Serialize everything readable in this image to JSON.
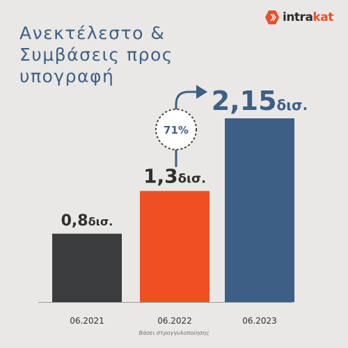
{
  "brand": {
    "logo_text_prefix": "intra",
    "logo_text_suffix": "kat",
    "colors": {
      "dark": "#2b2b2b",
      "accent": "#e8502a"
    }
  },
  "title_lines": [
    "Ανεκτέλεστο &",
    "Συμβάσεις προς",
    "υπογραφή"
  ],
  "footnote": "Βάσει στρογγυλοποίησης",
  "growth_badge": "71%",
  "chart_data": {
    "type": "bar",
    "title": "Ανεκτέλεστο & Συμβάσεις προς υπογραφή",
    "categories": [
      "06.2021",
      "06.2022",
      "06.2023"
    ],
    "values": [
      0.8,
      1.3,
      2.15
    ],
    "value_labels": [
      {
        "number": "0,8",
        "unit": "δισ."
      },
      {
        "number": "1,3",
        "unit": "δισ."
      },
      {
        "number": "2,15",
        "unit": "δισ."
      }
    ],
    "colors": [
      "#3a3c3d",
      "#ef4f23",
      "#3e5f85"
    ],
    "ylim": [
      0,
      2.15
    ],
    "annotation": {
      "text": "71%",
      "from": "06.2022",
      "to": "06.2023"
    },
    "grid": false,
    "legend": "none"
  }
}
